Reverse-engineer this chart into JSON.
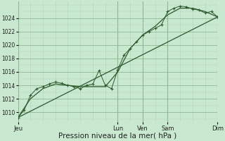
{
  "background_color": "#c8e8d0",
  "grid_color_major": "#90b890",
  "grid_color_minor": "#b0d4b8",
  "line_color": "#2d5a2d",
  "marker_color": "#2d5a2d",
  "xlabel": "Pression niveau de la mer( hPa )",
  "xlabel_fontsize": 7.5,
  "ylabel_labels": [
    1010,
    1012,
    1014,
    1016,
    1018,
    1020,
    1022,
    1024
  ],
  "xlim": [
    0,
    96
  ],
  "ylim": [
    1008.5,
    1026.5
  ],
  "day_labels": [
    "Jeu",
    "Lun",
    "Ven",
    "Sam",
    "Dim"
  ],
  "day_positions": [
    0,
    48,
    60,
    72,
    96
  ],
  "series1_x": [
    0,
    3,
    6,
    9,
    12,
    15,
    18,
    21,
    24,
    27,
    30,
    33,
    36,
    39,
    42,
    45,
    48,
    51,
    54,
    57,
    60,
    63,
    66,
    69,
    72,
    75,
    78,
    81,
    84,
    87,
    90,
    93,
    96
  ],
  "series1_y": [
    1009.2,
    1010.3,
    1012.5,
    1013.5,
    1013.8,
    1014.2,
    1014.5,
    1014.3,
    1014.0,
    1013.8,
    1013.5,
    1014.0,
    1014.2,
    1016.2,
    1014.0,
    1013.5,
    1016.3,
    1018.5,
    1019.5,
    1020.5,
    1021.5,
    1022.0,
    1022.5,
    1023.0,
    1025.0,
    1025.5,
    1025.8,
    1025.7,
    1025.4,
    1025.2,
    1024.8,
    1025.0,
    1024.2
  ],
  "series2_x": [
    0,
    6,
    12,
    18,
    24,
    30,
    36,
    42,
    48,
    54,
    60,
    66,
    72,
    78,
    84,
    90,
    96
  ],
  "series2_y": [
    1009.2,
    1012.0,
    1013.5,
    1014.2,
    1014.0,
    1013.8,
    1013.8,
    1013.8,
    1016.0,
    1019.5,
    1021.5,
    1022.8,
    1024.5,
    1025.5,
    1025.5,
    1025.0,
    1024.2
  ],
  "trend_x": [
    0,
    96
  ],
  "trend_y": [
    1009.2,
    1024.2
  ]
}
